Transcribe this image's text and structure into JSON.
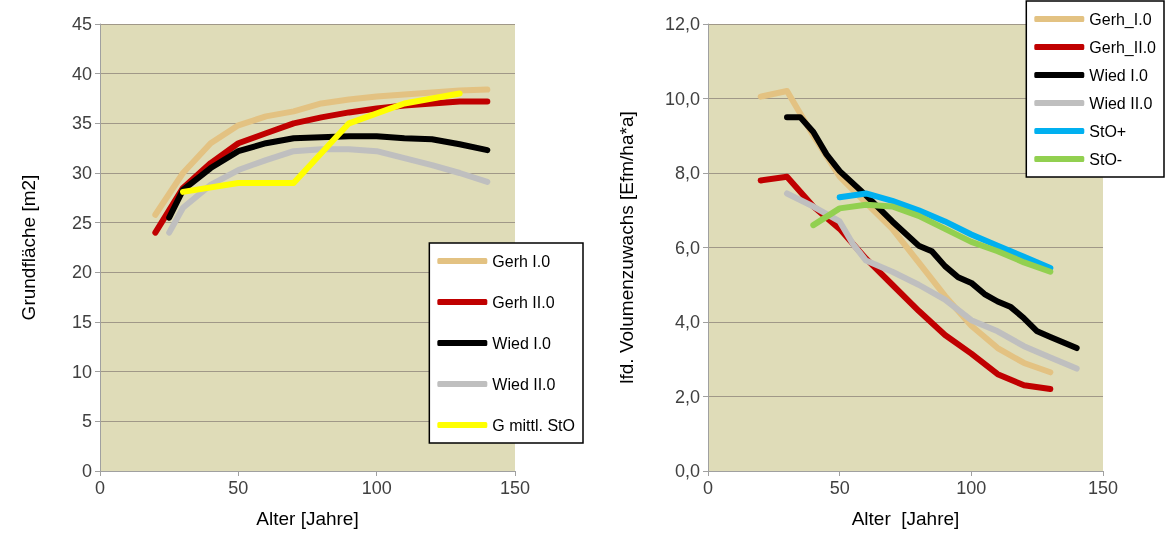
{
  "chart_data": [
    {
      "type": "line",
      "xlabel": "Alter [Jahre]",
      "ylabel": "Grundfläche [m2]",
      "xlim": [
        0,
        150
      ],
      "xticks": [
        0,
        50,
        100,
        150
      ],
      "ylim": [
        0,
        45
      ],
      "yticks": [
        0,
        5,
        10,
        15,
        20,
        25,
        30,
        35,
        40,
        45
      ],
      "grid": "y",
      "legend": "bottom right",
      "marker": "none",
      "line_style": "solid",
      "series": [
        {
          "name": "Gerh I.0",
          "color": "#e3c282",
          "x": [
            20,
            30,
            40,
            50,
            60,
            70,
            80,
            90,
            100,
            110,
            120,
            130,
            140
          ],
          "values": [
            25.8,
            30,
            33,
            34.8,
            35.7,
            36.2,
            37,
            37.4,
            37.7,
            37.9,
            38.1,
            38.3,
            38.4
          ]
        },
        {
          "name": "Gerh II.0",
          "color": "#c00000",
          "x": [
            20,
            30,
            40,
            50,
            60,
            70,
            80,
            90,
            100,
            110,
            120,
            130,
            140
          ],
          "values": [
            24,
            28.5,
            31,
            33,
            34,
            35,
            35.6,
            36.1,
            36.5,
            36.8,
            37,
            37.2,
            37.2
          ]
        },
        {
          "name": "Wied I.0",
          "color": "#000000",
          "x": [
            25,
            30,
            40,
            50,
            60,
            70,
            80,
            90,
            100,
            110,
            120,
            130,
            140
          ],
          "values": [
            25.5,
            28.3,
            30.5,
            32.2,
            33,
            33.5,
            33.6,
            33.7,
            33.7,
            33.5,
            33.4,
            32.9,
            32.3
          ]
        },
        {
          "name": "Wied II.0",
          "color": "#bfbfbf",
          "x": [
            25,
            30,
            40,
            50,
            60,
            70,
            80,
            90,
            100,
            110,
            120,
            130,
            140
          ],
          "values": [
            24,
            26.5,
            28.8,
            30.3,
            31.3,
            32.2,
            32.4,
            32.4,
            32.2,
            31.5,
            30.8,
            30,
            29.1
          ]
        },
        {
          "name": "G mittl. StO",
          "color": "#ffff00",
          "x": [
            30,
            50,
            70,
            90,
            110,
            130
          ],
          "values": [
            28.1,
            29,
            29,
            35,
            37,
            38
          ]
        }
      ]
    },
    {
      "type": "line",
      "xlabel": "Alter  [Jahre]",
      "ylabel": "lfd. Volumenzuwachs [Efm/ha*a]",
      "xlim": [
        0,
        150
      ],
      "xticks": [
        0,
        50,
        100,
        150
      ],
      "ylim": [
        0,
        12
      ],
      "yticks": [
        {
          "value": 0,
          "label": "0,0"
        },
        {
          "value": 2,
          "label": "2,0"
        },
        {
          "value": 4,
          "label": "4,0"
        },
        {
          "value": 6,
          "label": "6,0"
        },
        {
          "value": 8,
          "label": "8,0"
        },
        {
          "value": 10,
          "label": "10,0"
        },
        {
          "value": 12,
          "label": "12,0"
        }
      ],
      "grid": "y",
      "legend": "top right",
      "marker": "none",
      "line_style": "solid",
      "series": [
        {
          "name": "Gerh_I.0",
          "color": "#e3c282",
          "x": [
            20,
            30,
            40,
            50,
            60,
            70,
            80,
            90,
            100,
            110,
            120,
            130
          ],
          "values": [
            10.05,
            10.2,
            9.0,
            7.9,
            7.2,
            6.5,
            5.6,
            4.7,
            3.9,
            3.3,
            2.9,
            2.65
          ]
        },
        {
          "name": "Gerh_II.0",
          "color": "#c00000",
          "x": [
            20,
            30,
            40,
            50,
            60,
            70,
            80,
            90,
            100,
            110,
            120,
            130
          ],
          "values": [
            7.8,
            7.9,
            7.1,
            6.5,
            5.7,
            5.0,
            4.3,
            3.65,
            3.15,
            2.6,
            2.3,
            2.2
          ]
        },
        {
          "name": "Wied I.0",
          "color": "#000000",
          "x": [
            30,
            35,
            40,
            45,
            50,
            60,
            70,
            80,
            85,
            90,
            95,
            100,
            105,
            110,
            115,
            120,
            125,
            130,
            140
          ],
          "values": [
            9.5,
            9.5,
            9.1,
            8.5,
            8.05,
            7.4,
            6.7,
            6.05,
            5.9,
            5.5,
            5.2,
            5.05,
            4.75,
            4.55,
            4.4,
            4.1,
            3.75,
            3.6,
            3.3
          ]
        },
        {
          "name": "Wied II.0",
          "color": "#bfbfbf",
          "x": [
            30,
            40,
            50,
            55,
            60,
            70,
            80,
            90,
            100,
            110,
            120,
            130,
            140
          ],
          "values": [
            7.45,
            7.1,
            6.7,
            6.1,
            5.65,
            5.35,
            5.0,
            4.6,
            4.05,
            3.75,
            3.35,
            3.05,
            2.75
          ]
        },
        {
          "name": "StO+",
          "color": "#00b0f0",
          "x": [
            50,
            60,
            70,
            80,
            90,
            100,
            110,
            120,
            130
          ],
          "values": [
            7.35,
            7.45,
            7.25,
            7.0,
            6.7,
            6.35,
            6.05,
            5.75,
            5.45
          ]
        },
        {
          "name": "StO-",
          "color": "#92d050",
          "x": [
            40,
            50,
            60,
            70,
            80,
            90,
            100,
            110,
            120,
            130
          ],
          "values": [
            6.6,
            7.05,
            7.15,
            7.1,
            6.85,
            6.5,
            6.15,
            5.9,
            5.6,
            5.35
          ]
        }
      ]
    }
  ]
}
